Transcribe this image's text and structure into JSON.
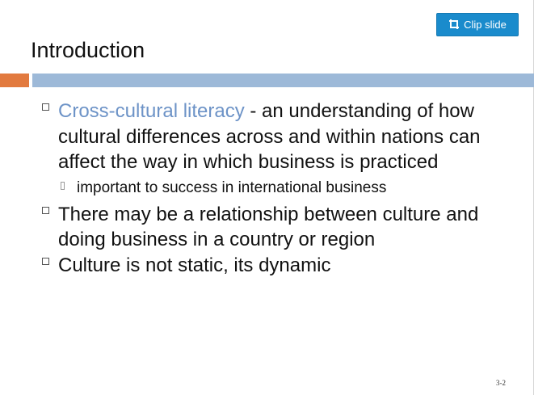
{
  "clip_button": {
    "label": "Clip slide",
    "icon": "clip-icon"
  },
  "slide": {
    "title": "Introduction",
    "accent_colors": {
      "orange": "#e27a3f",
      "blue": "#9db9d8",
      "link": "#6d93c7"
    },
    "bullets": [
      {
        "highlight": "Cross-cultural literacy",
        "text": " - an understanding of how cultural differences across and within nations can affect the way in which business is practiced",
        "sub": "important to success in international business"
      },
      {
        "text": "There may be a relationship between culture and doing business in a country or region"
      },
      {
        "text": "Culture is not static, its dynamic"
      }
    ],
    "page_number": "3-2"
  }
}
